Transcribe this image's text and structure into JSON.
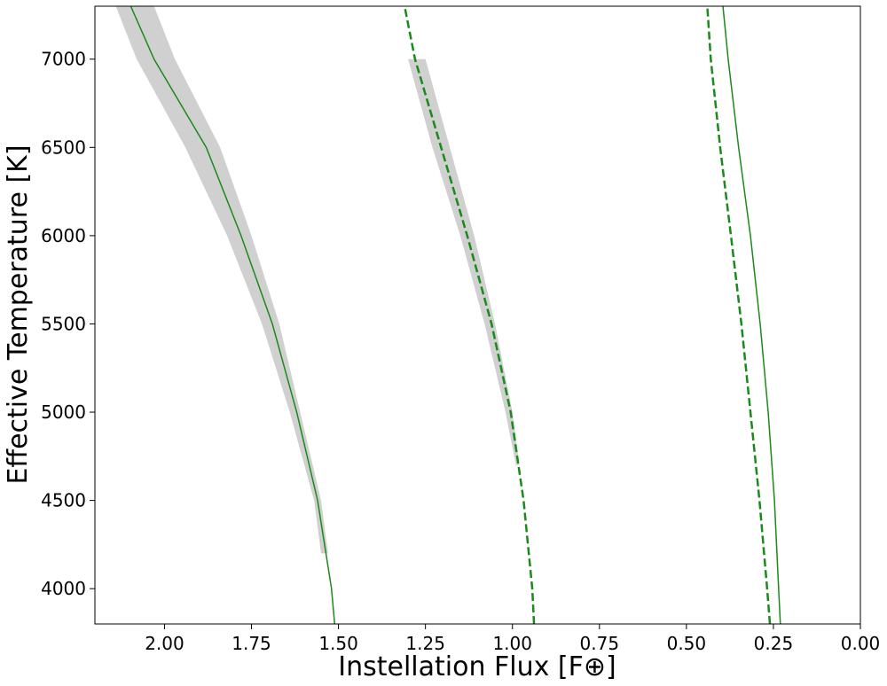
{
  "chart_data": {
    "type": "line",
    "xlabel": "Instellation Flux [F⊕]",
    "ylabel": "Effective Temperature [K]",
    "xlim": [
      2.2,
      0
    ],
    "ylim": [
      3800,
      7300
    ],
    "xticks": [
      {
        "value": 2.0,
        "label": "2.00"
      },
      {
        "value": 1.75,
        "label": "1.75"
      },
      {
        "value": 1.5,
        "label": "1.50"
      },
      {
        "value": 1.25,
        "label": "1.25"
      },
      {
        "value": 1.0,
        "label": "1.00"
      },
      {
        "value": 0.75,
        "label": "0.75"
      },
      {
        "value": 0.5,
        "label": "0.50"
      },
      {
        "value": 0.25,
        "label": "0.25"
      },
      {
        "value": 0,
        "label": "0.00"
      }
    ],
    "yticks": [
      4000,
      4500,
      5000,
      5500,
      6000,
      6500,
      7000
    ],
    "bands": [
      {
        "color": "#c8c8c8",
        "y": [
          4200,
          4500,
          5000,
          5500,
          6000,
          6500,
          7000,
          7300
        ],
        "x_low": [
          1.53,
          1.55,
          1.61,
          1.67,
          1.75,
          1.84,
          1.97,
          2.03
        ],
        "x_high": [
          1.55,
          1.57,
          1.64,
          1.72,
          1.82,
          1.94,
          2.08,
          2.14
        ]
      },
      {
        "color": "#c8c8c8",
        "y": [
          4700,
          5000,
          5500,
          6000,
          6500,
          7000
        ],
        "x_low": [
          0.98,
          1.0,
          1.05,
          1.11,
          1.18,
          1.25
        ],
        "x_high": [
          0.99,
          1.02,
          1.08,
          1.15,
          1.23,
          1.3
        ]
      }
    ],
    "series": [
      {
        "color": "#1a8a1a",
        "dashed": false,
        "y": [
          3800,
          4000,
          4500,
          5000,
          5500,
          6000,
          6500,
          7000,
          7300
        ],
        "x": [
          1.511,
          1.52,
          1.56,
          1.62,
          1.69,
          1.78,
          1.88,
          2.03,
          2.097
        ]
      },
      {
        "color": "#1a8a1a",
        "dashed": true,
        "y": [
          3800,
          4000,
          4500,
          5000,
          5500,
          6000,
          6500,
          7000,
          7300
        ],
        "x": [
          0.938,
          0.943,
          0.968,
          1.005,
          1.06,
          1.13,
          1.205,
          1.28,
          1.31
        ]
      },
      {
        "color": "#1a8a1a",
        "dashed": true,
        "y": [
          3800,
          4000,
          4500,
          5000,
          5500,
          6000,
          6500,
          7000,
          7300
        ],
        "x": [
          0.26,
          0.268,
          0.29,
          0.316,
          0.342,
          0.372,
          0.403,
          0.43,
          0.44
        ]
      },
      {
        "color": "#1a8a1a",
        "dashed": false,
        "y": [
          3800,
          4000,
          4500,
          5000,
          5500,
          6000,
          6500,
          7000,
          7300
        ],
        "x": [
          0.23,
          0.235,
          0.247,
          0.265,
          0.288,
          0.316,
          0.35,
          0.38,
          0.395
        ]
      }
    ]
  }
}
